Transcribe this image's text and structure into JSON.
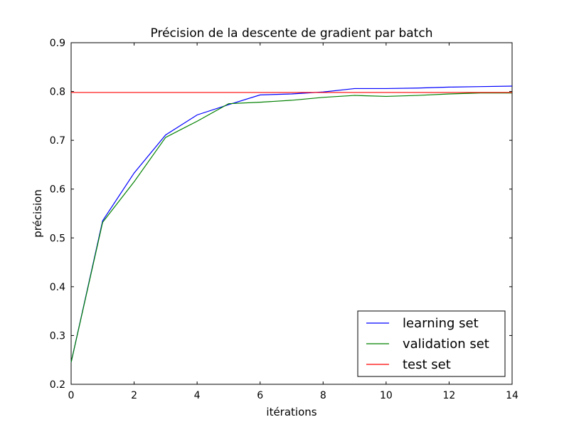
{
  "chart_data": {
    "type": "line",
    "title": "Précision de la descente de gradient par batch",
    "xlabel": "itérations",
    "ylabel": "précision",
    "xlim": [
      0,
      14
    ],
    "ylim": [
      0.2,
      0.9
    ],
    "xticks": [
      0,
      2,
      4,
      6,
      8,
      10,
      12,
      14
    ],
    "yticks": [
      0.2,
      0.3,
      0.4,
      0.5,
      0.6,
      0.7,
      0.8,
      0.9
    ],
    "xtick_labels": [
      "0",
      "2",
      "4",
      "6",
      "8",
      "10",
      "12",
      "14"
    ],
    "ytick_labels": [
      "0.2",
      "0.3",
      "0.4",
      "0.5",
      "0.6",
      "0.7",
      "0.8",
      "0.9"
    ],
    "grid": false,
    "legend_position": "lower-right",
    "series": [
      {
        "name": "learning set",
        "color": "#0000ff",
        "x": [
          0,
          1,
          2,
          3,
          4,
          5,
          6,
          7,
          8,
          9,
          10,
          11,
          12,
          13,
          14
        ],
        "y": [
          0.245,
          0.535,
          0.633,
          0.711,
          0.752,
          0.773,
          0.793,
          0.795,
          0.799,
          0.806,
          0.806,
          0.807,
          0.809,
          0.81,
          0.811
        ]
      },
      {
        "name": "validation set",
        "color": "#008000",
        "x": [
          0,
          1,
          2,
          3,
          4,
          5,
          6,
          7,
          8,
          9,
          10,
          11,
          12,
          13,
          14
        ],
        "y": [
          0.245,
          0.532,
          0.615,
          0.706,
          0.739,
          0.775,
          0.778,
          0.782,
          0.788,
          0.792,
          0.79,
          0.792,
          0.795,
          0.797,
          0.797
        ]
      },
      {
        "name": "test set",
        "color": "#ff0000",
        "x": [
          0,
          14
        ],
        "y": [
          0.798,
          0.798
        ]
      }
    ]
  }
}
